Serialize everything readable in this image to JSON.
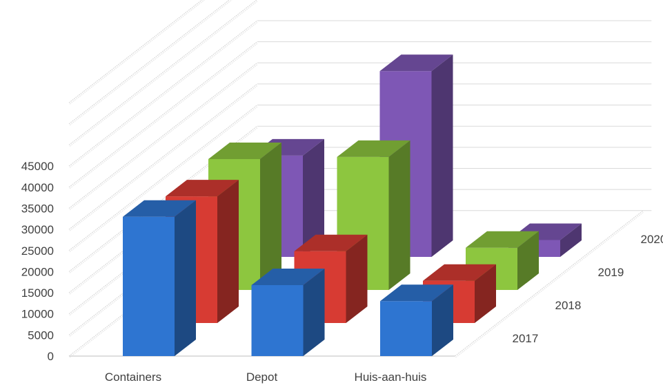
{
  "chart_data": {
    "type": "bar",
    "variant": "3d-column",
    "title": "",
    "xlabel": "",
    "ylabel": "",
    "categories": [
      "Containers",
      "Depot",
      "Huis-aan-huis"
    ],
    "y_ticks": [
      "0",
      "5000",
      "10000",
      "15000",
      "20000",
      "25000",
      "30000",
      "35000",
      "40000",
      "45000"
    ],
    "ylim": [
      0,
      45000
    ],
    "grid": true,
    "series": [
      {
        "name": "2017",
        "values": [
          33000,
          16800,
          13000
        ],
        "color": "#2E75D1"
      },
      {
        "name": "2018",
        "values": [
          30000,
          17000,
          10000
        ],
        "color": "#D73B33"
      },
      {
        "name": "2019",
        "values": [
          31000,
          31500,
          10000
        ],
        "color": "#8DC63F"
      },
      {
        "name": "2020",
        "values": [
          24000,
          44000,
          4000
        ],
        "color": "#7E57B5"
      }
    ]
  }
}
